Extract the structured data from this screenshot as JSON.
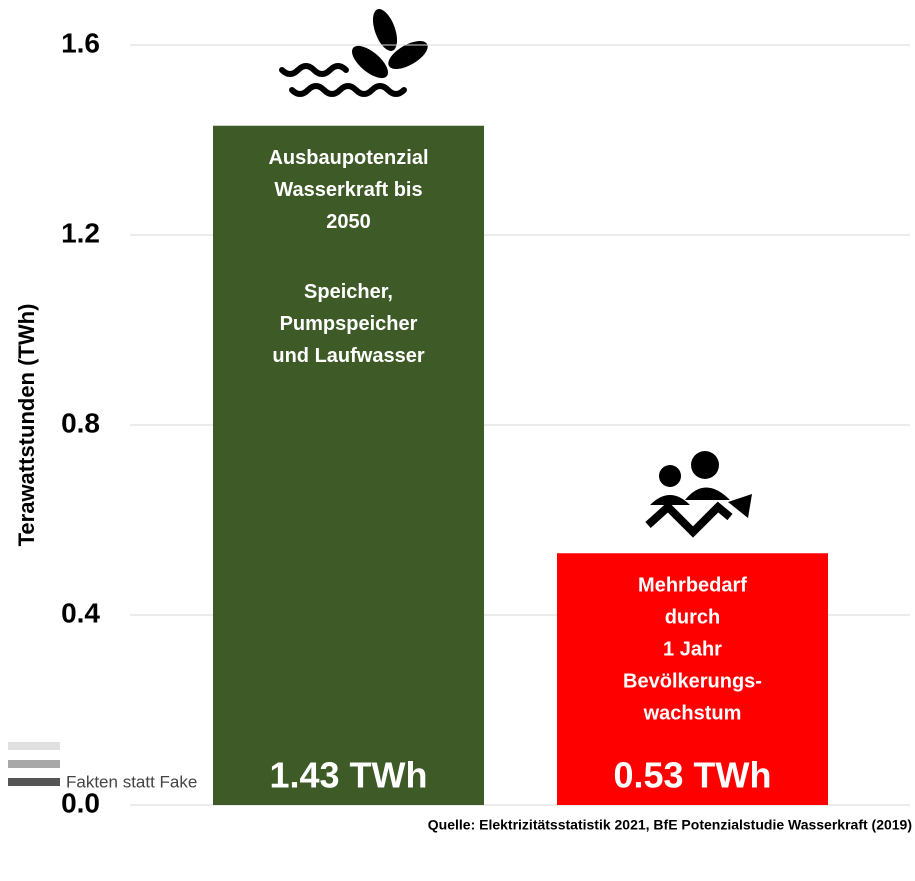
{
  "chart_data": {
    "type": "bar",
    "y_label": "Terawattstunden (TWh)",
    "values": [
      1.43,
      0.53
    ],
    "value_labels": [
      "1.43 TWh",
      "0.53 TWh"
    ],
    "colors": [
      "#3d5a27",
      "#ff0000"
    ],
    "bar_labels": [
      [
        [
          "Ausbaupotenzial",
          "Wasserkraft bis",
          "2050"
        ],
        [
          "Speicher,",
          "Pumpspeicher",
          "und Laufwasser"
        ]
      ],
      [
        [
          "Mehrbedarf",
          "durch",
          "1 Jahr",
          "Bevölkerungs-",
          "wachstum"
        ]
      ]
    ],
    "ylim": [
      0,
      1.6
    ],
    "yticks": [
      {
        "value": 0,
        "label": "0.0"
      },
      0.4,
      0.8,
      1.2,
      1.6
    ],
    "grid": true,
    "source": "Quelle: Elektrizitätsstatistik 2021, BfE Potenzialstudie Wasserkraft (2019)",
    "brand": "Fakten statt Fake"
  }
}
